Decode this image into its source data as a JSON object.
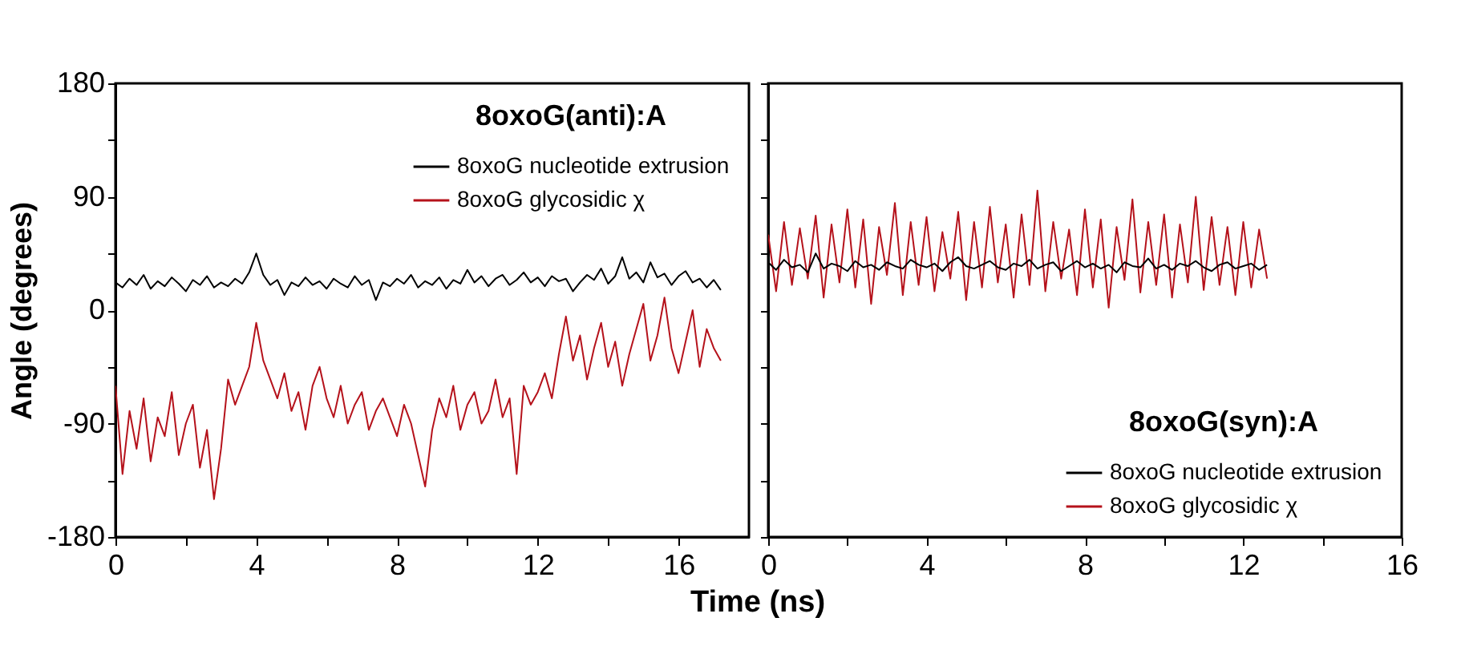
{
  "chart_data": [
    {
      "type": "line",
      "legend_title": "8oxoG(anti):A",
      "legend": "top right",
      "ylabel": "Angle (degrees)",
      "xlabel": "Time (ns)",
      "x": [
        0,
        0.2,
        0.4,
        0.6,
        0.8,
        1,
        1.2,
        1.4,
        1.6,
        1.8,
        2,
        2.2,
        2.4,
        2.6,
        2.8,
        3,
        3.2,
        3.4,
        3.6,
        3.8,
        4,
        4.2,
        4.4,
        4.6,
        4.8,
        5,
        5.2,
        5.4,
        5.6,
        5.8,
        6,
        6.2,
        6.4,
        6.6,
        6.8,
        7,
        7.2,
        7.4,
        7.6,
        7.8,
        8,
        8.2,
        8.4,
        8.6,
        8.8,
        9,
        9.2,
        9.4,
        9.6,
        9.8,
        10,
        10.2,
        10.4,
        10.6,
        10.8,
        11,
        11.2,
        11.4,
        11.6,
        11.8,
        12,
        12.2,
        12.4,
        12.6,
        12.8,
        13,
        13.2,
        13.4,
        13.6,
        13.8,
        14,
        14.2,
        14.4,
        14.6,
        14.8,
        15,
        15.2,
        15.4,
        15.6,
        15.8,
        16,
        16.2,
        16.4,
        16.6,
        16.8,
        17,
        17.2
      ],
      "series": [
        {
          "name": "8oxoG nucleotide extrusion",
          "color": "#000000",
          "values": [
            22,
            18,
            25,
            20,
            28,
            17,
            23,
            19,
            26,
            21,
            15,
            24,
            20,
            27,
            18,
            22,
            19,
            25,
            21,
            30,
            45,
            28,
            20,
            24,
            12,
            22,
            19,
            26,
            20,
            23,
            17,
            25,
            21,
            18,
            27,
            20,
            24,
            8,
            22,
            19,
            25,
            21,
            28,
            18,
            23,
            20,
            26,
            17,
            24,
            21,
            32,
            22,
            27,
            19,
            25,
            28,
            20,
            24,
            30,
            22,
            26,
            19,
            27,
            23,
            25,
            15,
            22,
            28,
            24,
            33,
            21,
            27,
            42,
            25,
            30,
            22,
            38,
            26,
            29,
            20,
            27,
            31,
            22,
            25,
            18,
            24,
            16
          ]
        },
        {
          "name": "8oxoG glycosidic χ",
          "color": "#b5121b",
          "values": [
            -60,
            -130,
            -80,
            -110,
            -70,
            -120,
            -85,
            -100,
            -65,
            -115,
            -90,
            -75,
            -125,
            -95,
            -150,
            -110,
            -55,
            -75,
            -60,
            -45,
            -10,
            -40,
            -55,
            -70,
            -50,
            -80,
            -65,
            -95,
            -60,
            -45,
            -70,
            -85,
            -60,
            -90,
            -75,
            -65,
            -95,
            -80,
            -70,
            -85,
            -100,
            -75,
            -90,
            -115,
            -140,
            -95,
            -70,
            -85,
            -60,
            -95,
            -75,
            -65,
            -90,
            -80,
            -55,
            -85,
            -70,
            -130,
            -60,
            -75,
            -65,
            -50,
            -70,
            -35,
            -5,
            -40,
            -20,
            -55,
            -30,
            -10,
            -45,
            -25,
            -60,
            -35,
            -15,
            5,
            -40,
            -20,
            10,
            -30,
            -50,
            -25,
            0,
            -45,
            -15,
            -30,
            -40
          ]
        }
      ],
      "xlim": [
        0,
        18
      ],
      "xticks": [
        0,
        {
          "value": 2,
          "label": null
        },
        4,
        {
          "value": 6,
          "label": null
        },
        8,
        {
          "value": 10,
          "label": null
        },
        12,
        {
          "value": 14,
          "label": null
        },
        16
      ],
      "ylim": [
        -180,
        180
      ],
      "yticks": [
        -180,
        {
          "value": -135,
          "label": null
        },
        -90,
        {
          "value": -45,
          "label": null
        },
        0,
        {
          "value": 45,
          "label": null
        },
        90,
        {
          "value": 135,
          "label": null
        },
        180
      ]
    },
    {
      "type": "line",
      "legend_title": "8oxoG(syn):A",
      "legend": "bottom right",
      "tick_labels": "x",
      "x": [
        0,
        0.2,
        0.4,
        0.6,
        0.8,
        1,
        1.2,
        1.4,
        1.6,
        1.8,
        2,
        2.2,
        2.4,
        2.6,
        2.8,
        3,
        3.2,
        3.4,
        3.6,
        3.8,
        4,
        4.2,
        4.4,
        4.6,
        4.8,
        5,
        5.2,
        5.4,
        5.6,
        5.8,
        6,
        6.2,
        6.4,
        6.6,
        6.8,
        7,
        7.2,
        7.4,
        7.6,
        7.8,
        8,
        8.2,
        8.4,
        8.6,
        8.8,
        9,
        9.2,
        9.4,
        9.6,
        9.8,
        10,
        10.2,
        10.4,
        10.6,
        10.8,
        11,
        11.2,
        11.4,
        11.6,
        11.8,
        12,
        12.2,
        12.4,
        12.6
      ],
      "series": [
        {
          "name": "8oxoG nucleotide extrusion",
          "color": "#000000",
          "values": [
            38,
            32,
            40,
            34,
            36,
            30,
            45,
            33,
            37,
            35,
            31,
            39,
            34,
            36,
            32,
            38,
            35,
            33,
            40,
            36,
            34,
            37,
            31,
            38,
            42,
            35,
            33,
            36,
            39,
            34,
            32,
            37,
            35,
            40,
            33,
            36,
            38,
            31,
            35,
            39,
            34,
            37,
            33,
            36,
            30,
            38,
            35,
            34,
            41,
            33,
            36,
            32,
            37,
            35,
            39,
            34,
            31,
            36,
            38,
            33,
            35,
            37,
            32,
            36
          ]
        },
        {
          "name": "8oxoG glycosidic χ",
          "color": "#b5121b",
          "values": [
            60,
            15,
            70,
            20,
            65,
            25,
            75,
            10,
            68,
            22,
            80,
            18,
            72,
            5,
            66,
            28,
            85,
            12,
            70,
            20,
            74,
            15,
            62,
            25,
            78,
            8,
            70,
            18,
            82,
            22,
            68,
            10,
            76,
            20,
            95,
            15,
            70,
            25,
            64,
            12,
            80,
            18,
            72,
            2,
            66,
            24,
            88,
            14,
            70,
            20,
            76,
            10,
            68,
            22,
            90,
            16,
            74,
            20,
            66,
            12,
            70,
            18,
            64,
            25
          ]
        }
      ],
      "xlim": [
        0,
        16
      ],
      "xticks": [
        0,
        {
          "value": 2,
          "label": null
        },
        4,
        {
          "value": 6,
          "label": null
        },
        8,
        {
          "value": 10,
          "label": null
        },
        12,
        {
          "value": 14,
          "label": null
        },
        16
      ],
      "ylim": [
        -180,
        180
      ],
      "yticks": [
        -180,
        {
          "value": -135,
          "label": null
        },
        -90,
        {
          "value": -45,
          "label": null
        },
        0,
        {
          "value": 45,
          "label": null
        },
        90,
        {
          "value": 135,
          "label": null
        },
        180
      ]
    }
  ]
}
